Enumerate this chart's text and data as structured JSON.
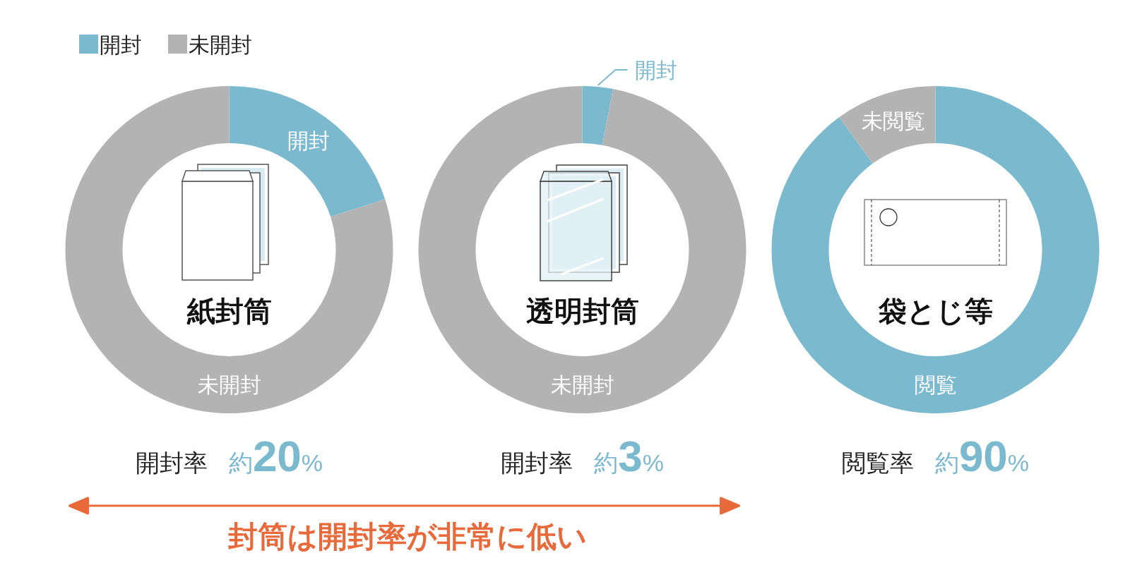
{
  "chart_data": [
    {
      "type": "donut",
      "title": "紙封筒",
      "categories": [
        "開封",
        "未開封"
      ],
      "values": [
        20,
        80
      ],
      "colors": [
        "#7bb9cf",
        "#b3b3b3"
      ],
      "legend": "top left",
      "annotations": [
        "開封率",
        "約20%",
        "封筒は開封率が非常に低い"
      ]
    },
    {
      "type": "donut",
      "title": "透明封筒",
      "categories": [
        "開封",
        "未開封"
      ],
      "values": [
        3,
        97
      ],
      "colors": [
        "#7bb9cf",
        "#b3b3b3"
      ],
      "annotations": [
        "開封率",
        "約3%"
      ]
    },
    {
      "type": "donut",
      "title": "袋とじ等",
      "categories": [
        "閲覧",
        "未閲覧"
      ],
      "values": [
        90,
        10
      ],
      "colors": [
        "#7bb9cf",
        "#b3b3b3"
      ],
      "annotations": [
        "閲覧率",
        "約90%"
      ]
    }
  ]
}
